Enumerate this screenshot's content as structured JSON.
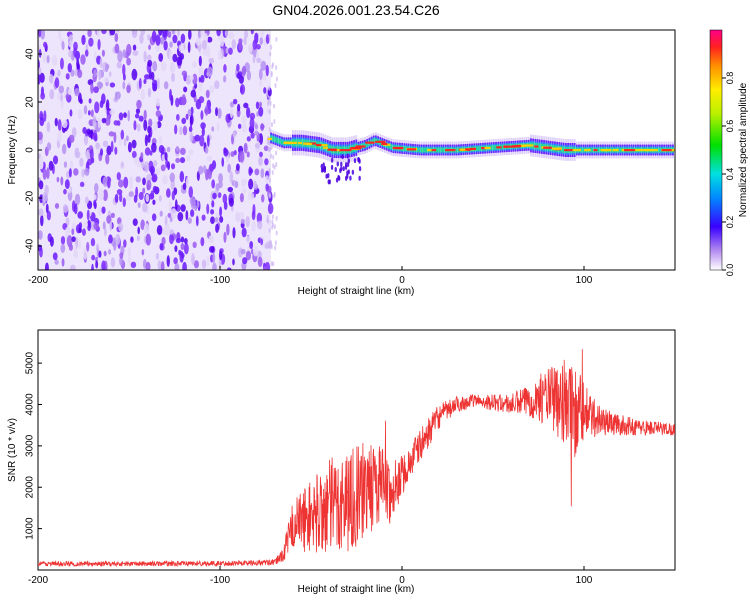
{
  "title": "GN04.2026.001.23.54.C26",
  "chart_data": [
    {
      "type": "heatmap",
      "xlabel": "Height of straight line (km)",
      "ylabel": "Frequency (Hz)",
      "xlim": [
        -200,
        150
      ],
      "ylim": [
        -50,
        50
      ],
      "xticks": [
        -200,
        -100,
        0,
        100
      ],
      "yticks": [
        -40,
        -20,
        0,
        20,
        40
      ],
      "xtick_labels": [
        "-200",
        "-100",
        "0",
        "100"
      ],
      "ytick_labels": [
        "-40",
        "-20",
        "0",
        "20",
        "40"
      ],
      "colorbar": {
        "label": "Normalized spectral amplitude",
        "range": [
          0,
          1
        ],
        "ticks": [
          0.0,
          0.2,
          0.4,
          0.6,
          0.8
        ],
        "tick_labels": [
          "0.0",
          "0.2",
          "0.4",
          "0.6",
          "0.8"
        ]
      },
      "noise_region_x": [
        -200,
        -72
      ],
      "ridge_points": [
        {
          "x": -72,
          "y": 5
        },
        {
          "x": -65,
          "y": 3
        },
        {
          "x": -55,
          "y": 3
        },
        {
          "x": -45,
          "y": 2
        },
        {
          "x": -38,
          "y": 0
        },
        {
          "x": -30,
          "y": 0
        },
        {
          "x": -20,
          "y": 2
        },
        {
          "x": -15,
          "y": 4
        },
        {
          "x": -5,
          "y": 1
        },
        {
          "x": 10,
          "y": 0
        },
        {
          "x": 30,
          "y": 0
        },
        {
          "x": 50,
          "y": 1
        },
        {
          "x": 70,
          "y": 2
        },
        {
          "x": 80,
          "y": 1
        },
        {
          "x": 90,
          "y": 0
        },
        {
          "x": 100,
          "y": 0
        },
        {
          "x": 120,
          "y": 0
        },
        {
          "x": 150,
          "y": 0
        }
      ]
    },
    {
      "type": "line",
      "xlabel": "Height of straight line (km)",
      "ylabel": "SNR (10 * v/v)",
      "xlim": [
        -200,
        150
      ],
      "ylim": [
        0,
        5800
      ],
      "xticks": [
        -200,
        -100,
        0,
        100
      ],
      "yticks": [
        1000,
        2000,
        3000,
        4000,
        5000
      ],
      "xtick_labels": [
        "-200",
        "-100",
        "0",
        "100"
      ],
      "ytick_labels": [
        "1000",
        "2000",
        "3000",
        "4000",
        "5000"
      ],
      "color": "#ee3333",
      "series": [
        {
          "name": "SNR",
          "envelope": [
            {
              "x": -200,
              "mean": 150,
              "spread": 60
            },
            {
              "x": -150,
              "mean": 150,
              "spread": 60
            },
            {
              "x": -100,
              "mean": 160,
              "spread": 60
            },
            {
              "x": -70,
              "mean": 180,
              "spread": 70
            },
            {
              "x": -65,
              "mean": 400,
              "spread": 200
            },
            {
              "x": -60,
              "mean": 1100,
              "spread": 600
            },
            {
              "x": -50,
              "mean": 1300,
              "spread": 900
            },
            {
              "x": -40,
              "mean": 1500,
              "spread": 1200
            },
            {
              "x": -30,
              "mean": 1700,
              "spread": 1300
            },
            {
              "x": -20,
              "mean": 1900,
              "spread": 1200
            },
            {
              "x": -10,
              "mean": 2200,
              "spread": 900
            },
            {
              "x": -5,
              "mean": 1700,
              "spread": 700
            },
            {
              "x": 0,
              "mean": 2300,
              "spread": 500
            },
            {
              "x": 10,
              "mean": 3000,
              "spread": 400
            },
            {
              "x": 20,
              "mean": 3700,
              "spread": 300
            },
            {
              "x": 30,
              "mean": 4000,
              "spread": 200
            },
            {
              "x": 40,
              "mean": 4100,
              "spread": 150
            },
            {
              "x": 50,
              "mean": 4050,
              "spread": 200
            },
            {
              "x": 60,
              "mean": 4000,
              "spread": 250
            },
            {
              "x": 70,
              "mean": 4100,
              "spread": 400
            },
            {
              "x": 80,
              "mean": 4200,
              "spread": 700
            },
            {
              "x": 90,
              "mean": 4000,
              "spread": 1100
            },
            {
              "x": 95,
              "mean": 3900,
              "spread": 1200
            },
            {
              "x": 100,
              "mean": 3800,
              "spread": 700
            },
            {
              "x": 110,
              "mean": 3600,
              "spread": 350
            },
            {
              "x": 120,
              "mean": 3500,
              "spread": 250
            },
            {
              "x": 130,
              "mean": 3450,
              "spread": 200
            },
            {
              "x": 150,
              "mean": 3400,
              "spread": 150
            }
          ]
        }
      ]
    }
  ]
}
